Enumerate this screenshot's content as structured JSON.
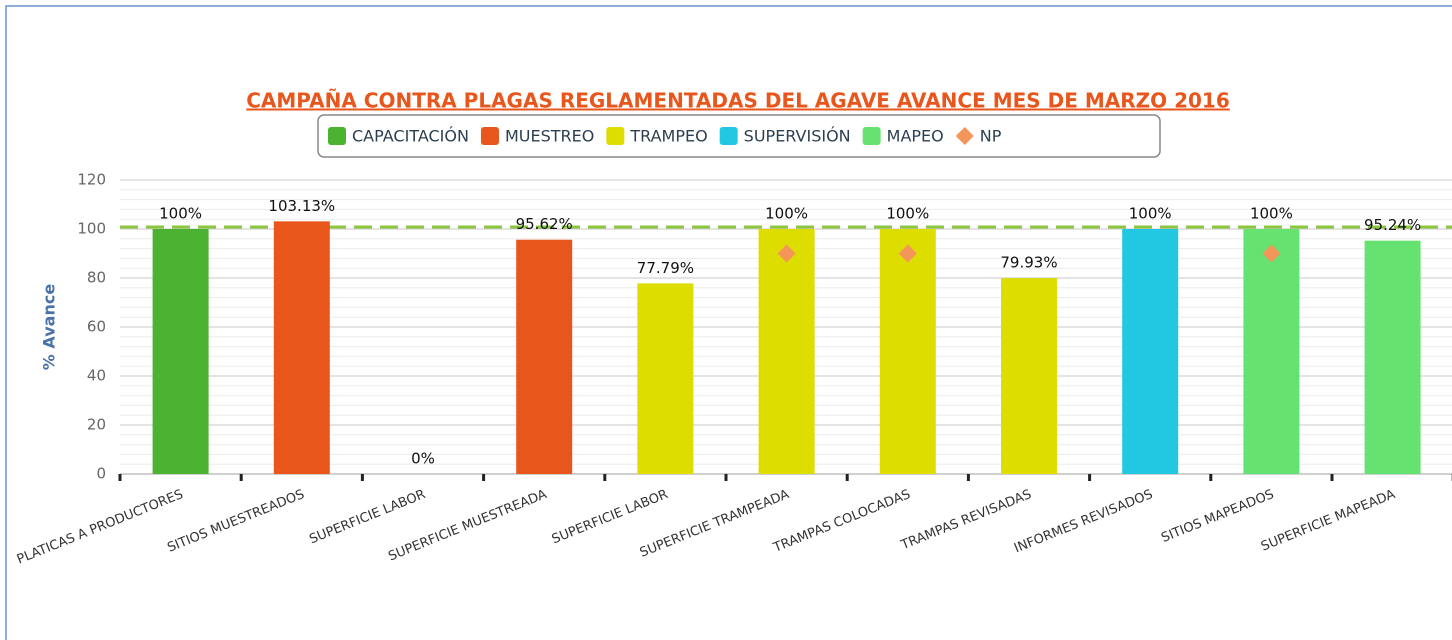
{
  "chart_data": {
    "type": "bar",
    "title": "CAMPAÑA CONTRA PLAGAS REGLAMENTADAS DEL AGAVE AVANCE MES DE MARZO 2016",
    "ylabel": "% Avance",
    "categories": [
      "PLATICAS A PRODUCTORES",
      "SITIOS MUESTREADOS",
      "SUPERFICIE LABOR",
      "SUPERFICIE MUESTREADA",
      "SUPERFICIE LABOR",
      "SUPERFICIE TRAMPEADA",
      "TRAMPAS COLOCADAS",
      "TRAMPAS REVISADAS",
      "INFORMES REVISADOS",
      "SITIOS MAPEADOS",
      "SUPERFICIE MAPEADA"
    ],
    "ylim": [
      0,
      120
    ],
    "yticks": [
      0,
      20,
      40,
      60,
      80,
      100,
      120
    ],
    "grid": true,
    "reference_line": 100,
    "reference_color": "#8cc63f",
    "series": [
      {
        "name": "CAPACITACIÓN",
        "color": "#4cb232",
        "values": [
          100,
          null,
          null,
          null,
          null,
          null,
          null,
          null,
          null,
          null,
          null
        ],
        "value_labels": [
          "100%",
          null,
          null,
          null,
          null,
          null,
          null,
          null,
          null,
          null,
          null
        ]
      },
      {
        "name": "MUESTREO",
        "color": "#e8561c",
        "values": [
          null,
          103.13,
          0,
          95.62,
          null,
          null,
          null,
          null,
          null,
          null,
          null
        ],
        "value_labels": [
          null,
          "103.13%",
          "0%",
          "95.62%",
          null,
          null,
          null,
          null,
          null,
          null,
          null
        ]
      },
      {
        "name": "TRAMPEO",
        "color": "#dddd00",
        "values": [
          null,
          null,
          null,
          null,
          77.79,
          100,
          100,
          79.93,
          null,
          null,
          null
        ],
        "value_labels": [
          null,
          null,
          null,
          null,
          "77.79%",
          "100%",
          "100%",
          "79.93%",
          null,
          null,
          null
        ]
      },
      {
        "name": "SUPERVISIÓN",
        "color": "#22c8e2",
        "values": [
          null,
          null,
          null,
          null,
          null,
          null,
          null,
          null,
          100,
          null,
          null
        ],
        "value_labels": [
          null,
          null,
          null,
          null,
          null,
          null,
          null,
          null,
          "100%",
          null,
          null
        ]
      },
      {
        "name": "MAPEO",
        "color": "#66e270",
        "values": [
          null,
          null,
          null,
          null,
          null,
          null,
          null,
          null,
          null,
          100,
          95.24
        ],
        "value_labels": [
          null,
          null,
          null,
          null,
          null,
          null,
          null,
          null,
          null,
          "100%",
          "95.24%"
        ]
      },
      {
        "name": "NP",
        "type": "scatter",
        "marker": "diamond",
        "color": "#f4955a",
        "values": [
          null,
          null,
          null,
          null,
          null,
          90,
          90,
          null,
          null,
          90,
          null
        ]
      }
    ]
  }
}
